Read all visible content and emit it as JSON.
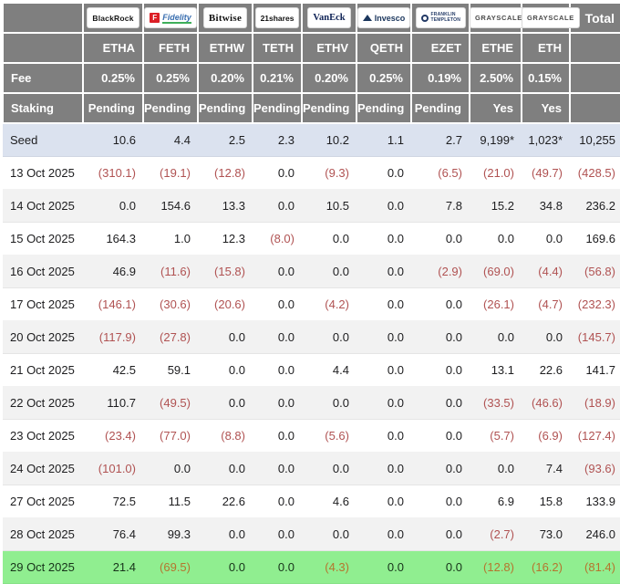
{
  "colors": {
    "header_bg": "#7f7f7f",
    "header_text": "#ffffff",
    "seed_row_bg": "#dbe2ef",
    "alt_row_bg": "#f2f2f2",
    "green_row_bg": "#90ee90",
    "negative_text": "#b05252",
    "negative_text_on_green": "#b5752e"
  },
  "chart_data": {
    "type": "table",
    "labels": {
      "total": "Total",
      "fee": "Fee",
      "staking": "Staking"
    },
    "providers": [
      {
        "company": "BlackRock",
        "ticker": "ETHA",
        "fee": "0.25%",
        "staking": "Pending",
        "icon": null,
        "icon_text": ""
      },
      {
        "company": "Fidelity",
        "ticker": "FETH",
        "fee": "0.25%",
        "staking": "Pending",
        "icon": "f-square",
        "icon_text": "F"
      },
      {
        "company": "Bitwise",
        "ticker": "ETHW",
        "fee": "0.20%",
        "staking": "Pending",
        "icon": null,
        "icon_text": ""
      },
      {
        "company": "21shares",
        "ticker": "TETH",
        "fee": "0.21%",
        "staking": "Pending",
        "icon": null,
        "icon_text": ""
      },
      {
        "company": "VanEck",
        "ticker": "ETHV",
        "fee": "0.20%",
        "staking": "Pending",
        "icon": null,
        "icon_text": ""
      },
      {
        "company": "Invesco",
        "ticker": "QETH",
        "fee": "0.25%",
        "staking": "Pending",
        "icon": "mountain",
        "icon_text": ""
      },
      {
        "company": "Franklin Templeton",
        "ticker": "EZET",
        "fee": "0.19%",
        "staking": "Pending",
        "icon": "seal",
        "icon_text": ""
      },
      {
        "company": "Grayscale",
        "ticker": "ETHE",
        "fee": "2.50%",
        "staking": "Yes",
        "icon": null,
        "icon_text": ""
      },
      {
        "company": "Grayscale",
        "ticker": "ETH",
        "fee": "0.15%",
        "staking": "Yes",
        "icon": null,
        "icon_text": ""
      }
    ],
    "rows": [
      {
        "label": "Seed",
        "highlight": "seed",
        "values": [
          "10.6",
          "4.4",
          "2.5",
          "2.3",
          "10.2",
          "1.1",
          "2.7",
          "9,199*",
          "1,023*",
          "10,255"
        ]
      },
      {
        "label": "13 Oct 2025",
        "highlight": null,
        "values": [
          "(310.1)",
          "(19.1)",
          "(12.8)",
          "0.0",
          "(9.3)",
          "0.0",
          "(6.5)",
          "(21.0)",
          "(49.7)",
          "(428.5)"
        ]
      },
      {
        "label": "14 Oct 2025",
        "highlight": null,
        "values": [
          "0.0",
          "154.6",
          "13.3",
          "0.0",
          "10.5",
          "0.0",
          "7.8",
          "15.2",
          "34.8",
          "236.2"
        ]
      },
      {
        "label": "15 Oct 2025",
        "highlight": null,
        "values": [
          "164.3",
          "1.0",
          "12.3",
          "(8.0)",
          "0.0",
          "0.0",
          "0.0",
          "0.0",
          "0.0",
          "169.6"
        ]
      },
      {
        "label": "16 Oct 2025",
        "highlight": null,
        "values": [
          "46.9",
          "(11.6)",
          "(15.8)",
          "0.0",
          "0.0",
          "0.0",
          "(2.9)",
          "(69.0)",
          "(4.4)",
          "(56.8)"
        ]
      },
      {
        "label": "17 Oct 2025",
        "highlight": null,
        "values": [
          "(146.1)",
          "(30.6)",
          "(20.6)",
          "0.0",
          "(4.2)",
          "0.0",
          "0.0",
          "(26.1)",
          "(4.7)",
          "(232.3)"
        ]
      },
      {
        "label": "20 Oct 2025",
        "highlight": null,
        "values": [
          "(117.9)",
          "(27.8)",
          "0.0",
          "0.0",
          "0.0",
          "0.0",
          "0.0",
          "0.0",
          "0.0",
          "(145.7)"
        ]
      },
      {
        "label": "21 Oct 2025",
        "highlight": null,
        "values": [
          "42.5",
          "59.1",
          "0.0",
          "0.0",
          "4.4",
          "0.0",
          "0.0",
          "13.1",
          "22.6",
          "141.7"
        ]
      },
      {
        "label": "22 Oct 2025",
        "highlight": null,
        "values": [
          "110.7",
          "(49.5)",
          "0.0",
          "0.0",
          "0.0",
          "0.0",
          "0.0",
          "(33.5)",
          "(46.6)",
          "(18.9)"
        ]
      },
      {
        "label": "23 Oct 2025",
        "highlight": null,
        "values": [
          "(23.4)",
          "(77.0)",
          "(8.8)",
          "0.0",
          "(5.6)",
          "0.0",
          "0.0",
          "(5.7)",
          "(6.9)",
          "(127.4)"
        ]
      },
      {
        "label": "24 Oct 2025",
        "highlight": null,
        "values": [
          "(101.0)",
          "0.0",
          "0.0",
          "0.0",
          "0.0",
          "0.0",
          "0.0",
          "0.0",
          "7.4",
          "(93.6)"
        ]
      },
      {
        "label": "27 Oct 2025",
        "highlight": null,
        "values": [
          "72.5",
          "11.5",
          "22.6",
          "0.0",
          "4.6",
          "0.0",
          "0.0",
          "6.9",
          "15.8",
          "133.9"
        ]
      },
      {
        "label": "28 Oct 2025",
        "highlight": null,
        "values": [
          "76.4",
          "99.3",
          "0.0",
          "0.0",
          "0.0",
          "0.0",
          "0.0",
          "(2.7)",
          "73.0",
          "246.0"
        ]
      },
      {
        "label": "29 Oct 2025",
        "highlight": "green",
        "values": [
          "21.4",
          "(69.5)",
          "0.0",
          "0.0",
          "(4.3)",
          "0.0",
          "0.0",
          "(12.8)",
          "(16.2)",
          "(81.4)"
        ]
      }
    ]
  }
}
